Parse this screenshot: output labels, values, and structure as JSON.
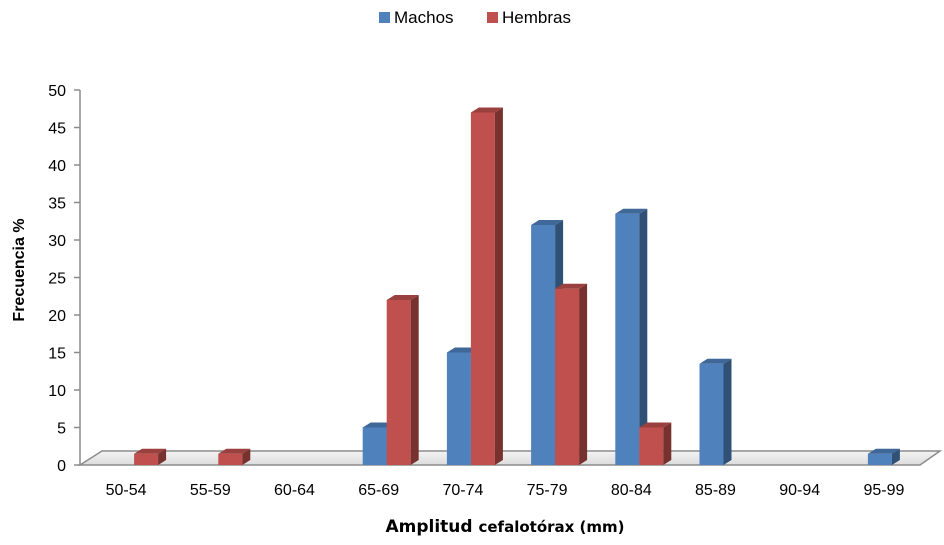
{
  "chart_data": {
    "type": "bar",
    "style": "3d-clustered-column",
    "categories": [
      "50-54",
      "55-59",
      "60-64",
      "65-69",
      "70-74",
      "75-79",
      "80-84",
      "85-89",
      "90-94",
      "95-99"
    ],
    "series": [
      {
        "name": "Machos",
        "color": "#4f81bd",
        "values": [
          0,
          0,
          0,
          5,
          15,
          32,
          33.5,
          13.5,
          0,
          1.5
        ]
      },
      {
        "name": "Hembras",
        "color": "#c0504d",
        "values": [
          1.5,
          1.5,
          0,
          22,
          47,
          23.5,
          5,
          0,
          0,
          0
        ]
      }
    ],
    "yticks": [
      "0",
      "5",
      "10",
      "15",
      "20",
      "25",
      "30",
      "35",
      "40",
      "45",
      "50"
    ],
    "ylim": [
      0,
      50
    ],
    "ylabel": "Frecuencia %",
    "xlabel_main": "Amplitud ",
    "xlabel_small": "cefalotórax (mm)",
    "legend_position": "top-center",
    "grid": false
  }
}
